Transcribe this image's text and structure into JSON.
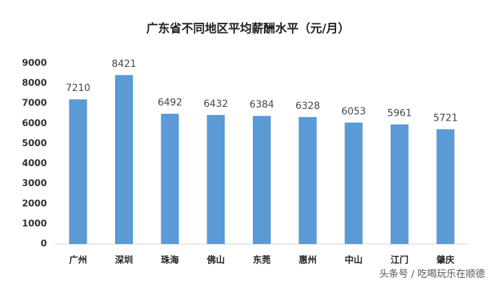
{
  "chart_data": {
    "type": "bar",
    "title": "广东省不同地区平均薪酬水平（元/月）",
    "categories": [
      "广州",
      "深圳",
      "珠海",
      "佛山",
      "东莞",
      "惠州",
      "中山",
      "江门",
      "肇庆"
    ],
    "values": [
      7210,
      8421,
      6492,
      6432,
      6384,
      6328,
      6053,
      5961,
      5721
    ],
    "color": "#5b9bd5",
    "ylim": [
      0,
      9000
    ],
    "yticks": [
      0,
      1000,
      2000,
      3000,
      4000,
      5000,
      6000,
      7000,
      8000,
      9000
    ],
    "grid": false
  },
  "watermark": "头条号 / 吃喝玩乐在顺德"
}
